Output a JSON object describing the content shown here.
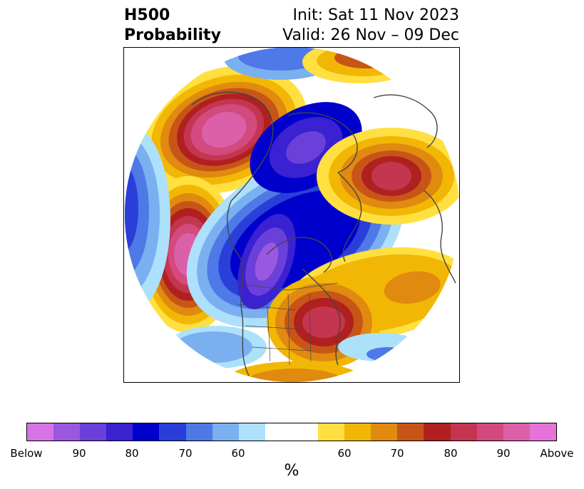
{
  "title": {
    "line1": "H500",
    "line2": "Probability",
    "init": "Init: Sat 11 Nov 2023",
    "valid": "Valid: 26 Nov – 09 Dec"
  },
  "colorbar": {
    "unit": "%",
    "below_colors": [
      "#d674e6",
      "#9a58e0",
      "#6b3fd9",
      "#3a21d1",
      "#0000cc",
      "#2a3fd9",
      "#4f79e6",
      "#7ab0f0",
      "#ade0fb"
    ],
    "neutral_color": "#ffffff",
    "above_colors": [
      "#ffe040",
      "#f2b705",
      "#e08a10",
      "#c85518",
      "#b02020",
      "#c43550",
      "#d24a7e",
      "#dc60a8",
      "#e673d8"
    ],
    "tick_labels": [
      "Below",
      "90",
      "80",
      "70",
      "60",
      "60",
      "70",
      "80",
      "90",
      "Above"
    ]
  }
}
